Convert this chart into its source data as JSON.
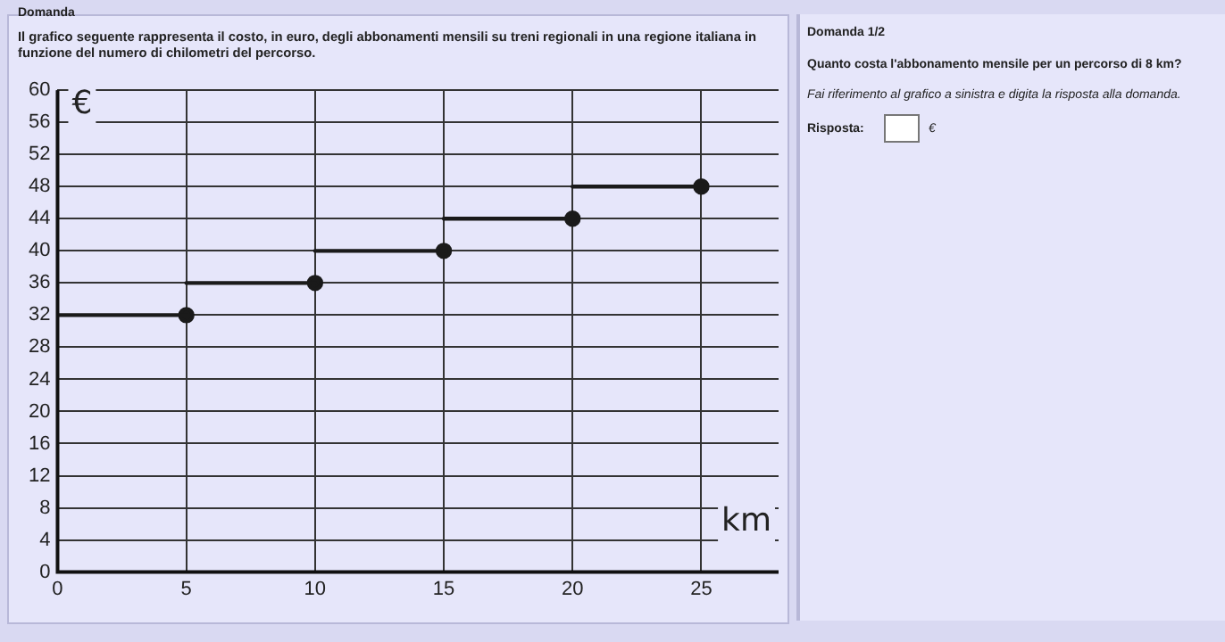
{
  "chart_data": {
    "type": "line",
    "title": "Il grafico seguente rappresenta il costo, in euro, degli abbonamenti mensili su treni regionali in una regione italiana in funzione del numero di chilometri del percorso.",
    "xlabel": "km",
    "ylabel": "€",
    "series": [
      {
        "marker": "none",
        "color": "#1a1a1a",
        "x": [
          0,
          5
        ],
        "values": [
          32,
          32
        ]
      },
      {
        "marker": "none",
        "color": "#1a1a1a",
        "x": [
          5,
          10
        ],
        "values": [
          36,
          36
        ]
      },
      {
        "marker": "none",
        "color": "#1a1a1a",
        "x": [
          10,
          15
        ],
        "values": [
          40,
          40
        ]
      },
      {
        "marker": "none",
        "color": "#1a1a1a",
        "x": [
          15,
          20
        ],
        "values": [
          44,
          44
        ]
      },
      {
        "marker": "none",
        "color": "#1a1a1a",
        "x": [
          20,
          25
        ],
        "values": [
          48,
          48
        ]
      },
      {
        "type": "scatter",
        "marker": "circle",
        "color": "#1a1a1a",
        "x": [
          5,
          10,
          15,
          20,
          25
        ],
        "values": [
          32,
          36,
          40,
          44,
          48
        ]
      }
    ],
    "xlim": [
      0,
      28
    ],
    "xticks": [
      0,
      5,
      10,
      15,
      20,
      25
    ],
    "ylim": [
      0,
      60
    ],
    "yticks": [
      0,
      4,
      8,
      12,
      16,
      20,
      24,
      28,
      32,
      36,
      40,
      44,
      48,
      52,
      56,
      60
    ],
    "grid": true,
    "legend": false,
    "line_style": "solid",
    "annotations": [
      "Domanda",
      "Domanda 1/2",
      "Quanto costa l'abbonamento mensile per un percorso di 8 km?",
      "Fai riferimento al grafico a sinistra e digita la risposta alla domanda.",
      "Risposta:",
      "€"
    ]
  }
}
